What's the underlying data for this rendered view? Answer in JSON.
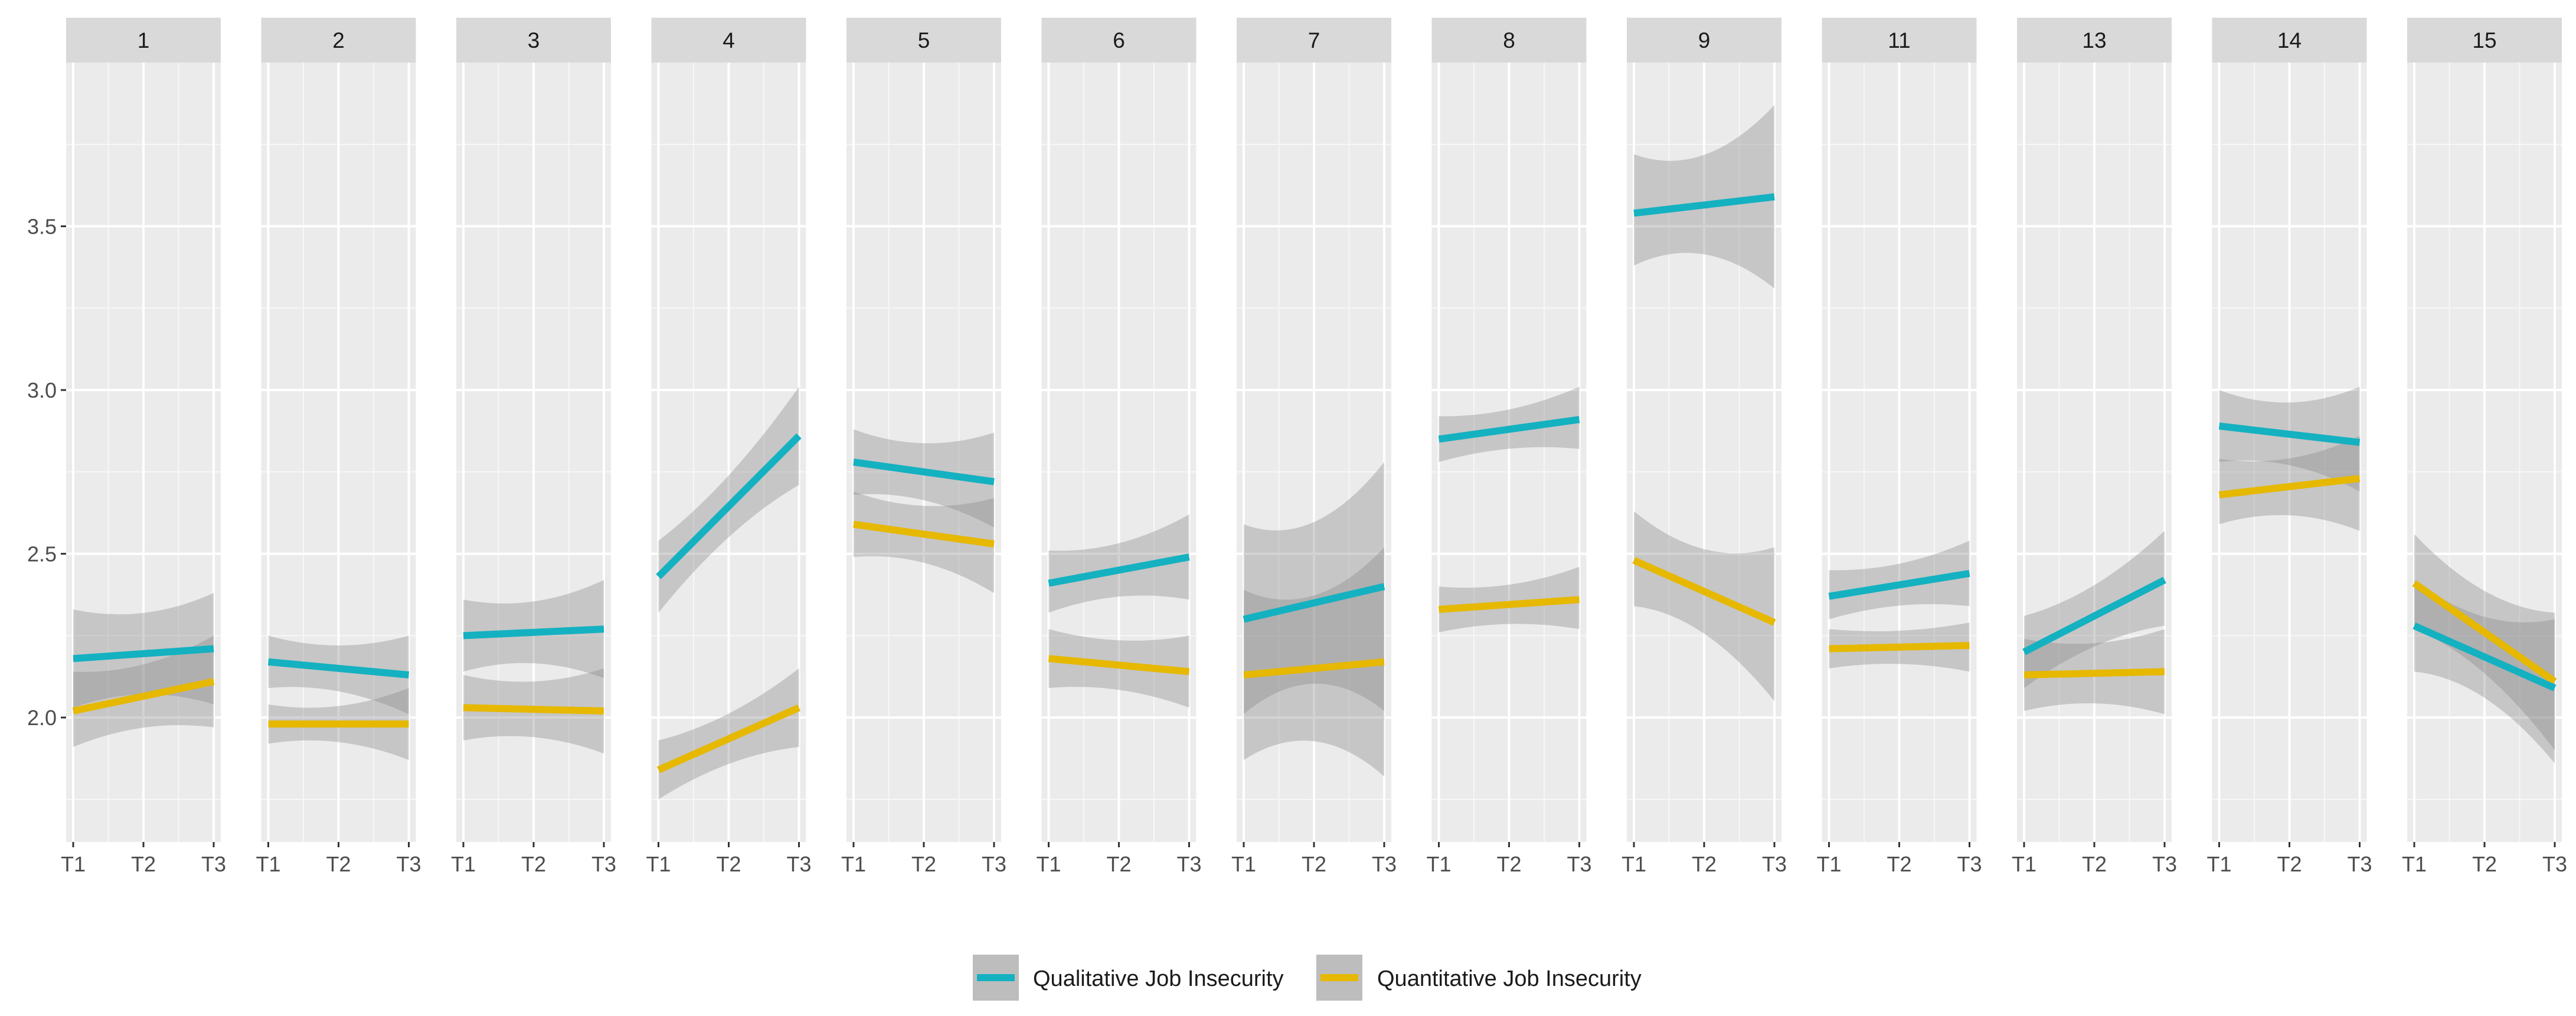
{
  "chart_data": {
    "type": "line",
    "facet_by": "group",
    "x_categories": [
      "T1",
      "T2",
      "T3"
    ],
    "y_ticks": [
      2.0,
      2.5,
      3.0,
      3.5
    ],
    "y_tick_labels": [
      "2.0",
      "2.5",
      "3.0",
      "3.5"
    ],
    "ylim": [
      1.62,
      4.0
    ],
    "grid": true,
    "legend_position": "bottom",
    "legend": [
      {
        "name": "Qualitative Job Insecurity",
        "color": "#14B1C1"
      },
      {
        "name": "Quantitative Job Insecurity",
        "color": "#E6B800"
      }
    ],
    "series_colors": {
      "qual": "#14B1C1",
      "quant": "#E6B800"
    },
    "ribbon_color": "#8c8c8c",
    "panels": [
      {
        "label": "1",
        "qual": {
          "start": 2.18,
          "end": 2.21,
          "ci_start": [
            2.03,
            2.33
          ],
          "ci_end": [
            2.04,
            2.38
          ]
        },
        "quant": {
          "start": 2.02,
          "end": 2.11,
          "ci_start": [
            1.91,
            2.14
          ],
          "ci_end": [
            1.97,
            2.25
          ]
        }
      },
      {
        "label": "2",
        "qual": {
          "start": 2.17,
          "end": 2.13,
          "ci_start": [
            2.09,
            2.25
          ],
          "ci_end": [
            2.01,
            2.25
          ]
        },
        "quant": {
          "start": 1.98,
          "end": 1.98,
          "ci_start": [
            1.92,
            2.04
          ],
          "ci_end": [
            1.87,
            2.09
          ]
        }
      },
      {
        "label": "3",
        "qual": {
          "start": 2.25,
          "end": 2.27,
          "ci_start": [
            2.14,
            2.36
          ],
          "ci_end": [
            2.12,
            2.42
          ]
        },
        "quant": {
          "start": 2.03,
          "end": 2.02,
          "ci_start": [
            1.93,
            2.13
          ],
          "ci_end": [
            1.89,
            2.15
          ]
        }
      },
      {
        "label": "4",
        "qual": {
          "start": 2.43,
          "end": 2.86,
          "ci_start": [
            2.32,
            2.54
          ],
          "ci_end": [
            2.71,
            3.01
          ]
        },
        "quant": {
          "start": 1.84,
          "end": 2.03,
          "ci_start": [
            1.75,
            1.93
          ],
          "ci_end": [
            1.91,
            2.15
          ]
        }
      },
      {
        "label": "5",
        "qual": {
          "start": 2.78,
          "end": 2.72,
          "ci_start": [
            2.68,
            2.88
          ],
          "ci_end": [
            2.58,
            2.87
          ]
        },
        "quant": {
          "start": 2.59,
          "end": 2.53,
          "ci_start": [
            2.49,
            2.69
          ],
          "ci_end": [
            2.38,
            2.67
          ]
        }
      },
      {
        "label": "6",
        "qual": {
          "start": 2.41,
          "end": 2.49,
          "ci_start": [
            2.32,
            2.51
          ],
          "ci_end": [
            2.36,
            2.62
          ]
        },
        "quant": {
          "start": 2.18,
          "end": 2.14,
          "ci_start": [
            2.09,
            2.27
          ],
          "ci_end": [
            2.03,
            2.25
          ]
        }
      },
      {
        "label": "7",
        "qual": {
          "start": 2.3,
          "end": 2.4,
          "ci_start": [
            2.01,
            2.59
          ],
          "ci_end": [
            2.02,
            2.78
          ]
        },
        "quant": {
          "start": 2.13,
          "end": 2.17,
          "ci_start": [
            1.87,
            2.39
          ],
          "ci_end": [
            1.82,
            2.52
          ]
        }
      },
      {
        "label": "8",
        "qual": {
          "start": 2.85,
          "end": 2.91,
          "ci_start": [
            2.78,
            2.92
          ],
          "ci_end": [
            2.82,
            3.01
          ]
        },
        "quant": {
          "start": 2.33,
          "end": 2.36,
          "ci_start": [
            2.26,
            2.4
          ],
          "ci_end": [
            2.27,
            2.46
          ]
        }
      },
      {
        "label": "9",
        "qual": {
          "start": 3.54,
          "end": 3.59,
          "ci_start": [
            3.38,
            3.72
          ],
          "ci_end": [
            3.31,
            3.87
          ]
        },
        "quant": {
          "start": 2.48,
          "end": 2.29,
          "ci_start": [
            2.34,
            2.63
          ],
          "ci_end": [
            2.05,
            2.52
          ]
        }
      },
      {
        "label": "11",
        "qual": {
          "start": 2.37,
          "end": 2.44,
          "ci_start": [
            2.3,
            2.45
          ],
          "ci_end": [
            2.34,
            2.54
          ]
        },
        "quant": {
          "start": 2.21,
          "end": 2.22,
          "ci_start": [
            2.15,
            2.27
          ],
          "ci_end": [
            2.14,
            2.29
          ]
        }
      },
      {
        "label": "13",
        "qual": {
          "start": 2.2,
          "end": 2.42,
          "ci_start": [
            2.09,
            2.31
          ],
          "ci_end": [
            2.28,
            2.57
          ]
        },
        "quant": {
          "start": 2.13,
          "end": 2.14,
          "ci_start": [
            2.02,
            2.24
          ],
          "ci_end": [
            2.01,
            2.27
          ]
        }
      },
      {
        "label": "14",
        "qual": {
          "start": 2.89,
          "end": 2.84,
          "ci_start": [
            2.78,
            3.0
          ],
          "ci_end": [
            2.69,
            3.01
          ]
        },
        "quant": {
          "start": 2.68,
          "end": 2.73,
          "ci_start": [
            2.59,
            2.79
          ],
          "ci_end": [
            2.57,
            2.86
          ]
        }
      },
      {
        "label": "15",
        "qual": {
          "start": 2.28,
          "end": 2.09,
          "ci_start": [
            2.14,
            2.42
          ],
          "ci_end": [
            1.86,
            2.3
          ]
        },
        "quant": {
          "start": 2.41,
          "end": 2.11,
          "ci_start": [
            2.27,
            2.56
          ],
          "ci_end": [
            1.9,
            2.32
          ]
        }
      }
    ]
  }
}
